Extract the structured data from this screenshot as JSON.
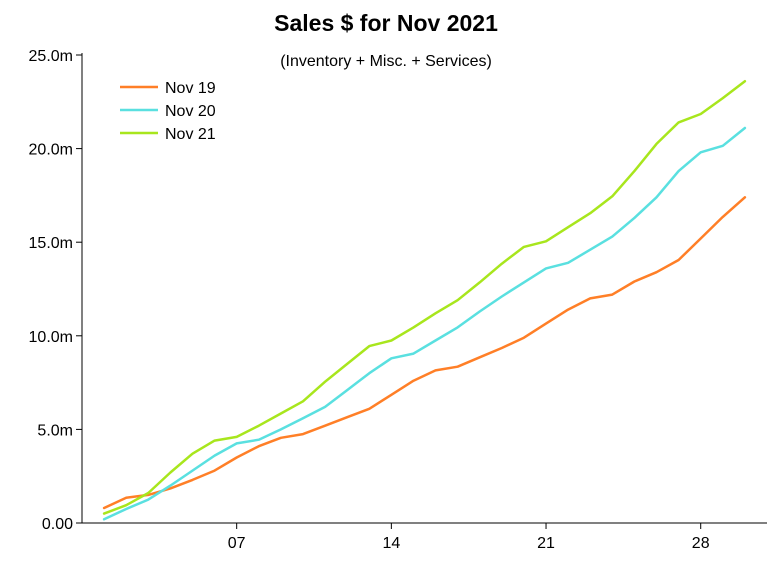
{
  "chart_data": {
    "type": "line",
    "title": "Sales $ for Nov 2021",
    "subtitle": "(Inventory + Misc. + Services)",
    "xlabel": "",
    "ylabel": "",
    "x": [
      1,
      2,
      3,
      4,
      5,
      6,
      7,
      8,
      9,
      10,
      11,
      12,
      13,
      14,
      15,
      16,
      17,
      18,
      19,
      20,
      21,
      22,
      23,
      24,
      25,
      26,
      27,
      28,
      29,
      30
    ],
    "x_ticks": [
      7,
      14,
      21,
      28
    ],
    "x_tick_labels": [
      "07",
      "14",
      "21",
      "28"
    ],
    "xlim": [
      0,
      31
    ],
    "y_ticks": [
      0,
      5,
      10,
      15,
      20,
      25
    ],
    "y_tick_labels": [
      "0.00",
      "5.0m",
      "10.0m",
      "15.0m",
      "20.0m",
      "25.0m"
    ],
    "ylim": [
      0,
      25
    ],
    "y_unit": "millions",
    "grid": false,
    "legend_position": "top-left",
    "series": [
      {
        "name": "Nov 19",
        "color": "#ff7f27",
        "values": [
          0.8,
          1.35,
          1.5,
          1.85,
          2.3,
          2.8,
          3.5,
          4.1,
          4.55,
          4.75,
          5.2,
          5.65,
          6.1,
          6.85,
          7.6,
          8.15,
          8.35,
          8.85,
          9.35,
          9.9,
          10.65,
          11.4,
          12.0,
          12.2,
          12.9,
          13.4,
          14.05,
          15.2,
          16.35,
          17.4
        ]
      },
      {
        "name": "Nov 20",
        "color": "#5ae0e0",
        "values": [
          0.2,
          0.75,
          1.25,
          2.0,
          2.8,
          3.6,
          4.25,
          4.45,
          5.0,
          5.6,
          6.2,
          7.1,
          8.0,
          8.8,
          9.05,
          9.75,
          10.45,
          11.3,
          12.1,
          12.85,
          13.6,
          13.9,
          14.6,
          15.3,
          16.3,
          17.4,
          18.8,
          19.8,
          20.15,
          21.1
        ]
      },
      {
        "name": "Nov 21",
        "color": "#a8e61d",
        "values": [
          0.5,
          0.95,
          1.6,
          2.7,
          3.7,
          4.4,
          4.6,
          5.2,
          5.85,
          6.5,
          7.55,
          8.5,
          9.45,
          9.75,
          10.45,
          11.2,
          11.9,
          12.85,
          13.85,
          14.75,
          15.05,
          15.8,
          16.55,
          17.45,
          18.8,
          20.25,
          21.4,
          21.85,
          22.7,
          23.6
        ]
      }
    ]
  }
}
